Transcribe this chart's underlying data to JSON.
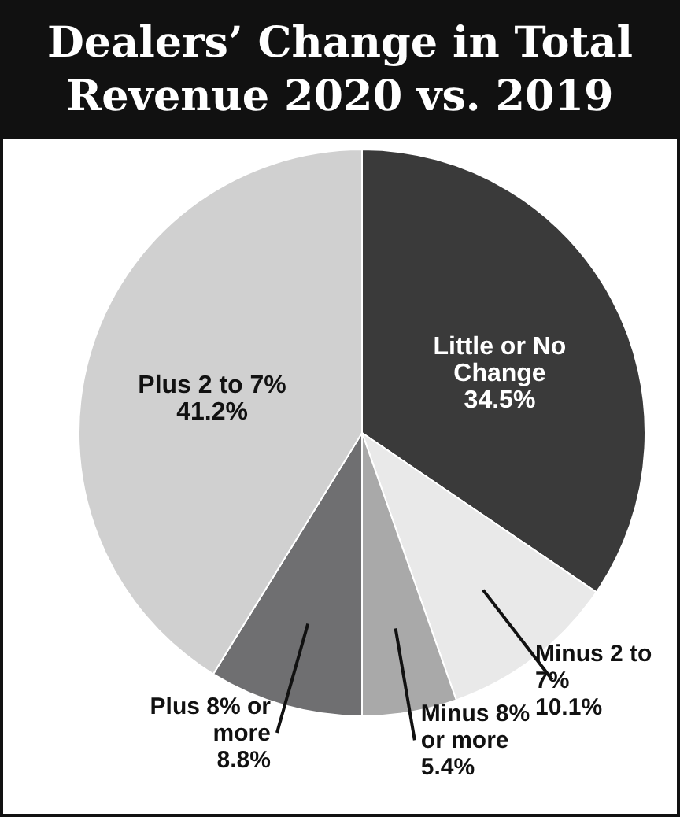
{
  "chart_data": {
    "type": "pie",
    "title": "Dealers’ Change in Total Revenue 2020 vs. 2019",
    "categories": [
      "Little or No Change",
      "Minus 2 to 7%",
      "Minus 8% or more",
      "Plus 8% or more",
      "Plus 2 to 7%"
    ],
    "values": [
      34.5,
      10.1,
      5.4,
      8.8,
      41.2
    ],
    "colors": [
      "#3a3a3a",
      "#e9e9e9",
      "#a9a9a9",
      "#6f6f71",
      "#d0d0d0"
    ],
    "value_labels": [
      "34.5%",
      "10.1%",
      "5.4%",
      "8.8%",
      "41.2%"
    ]
  }
}
